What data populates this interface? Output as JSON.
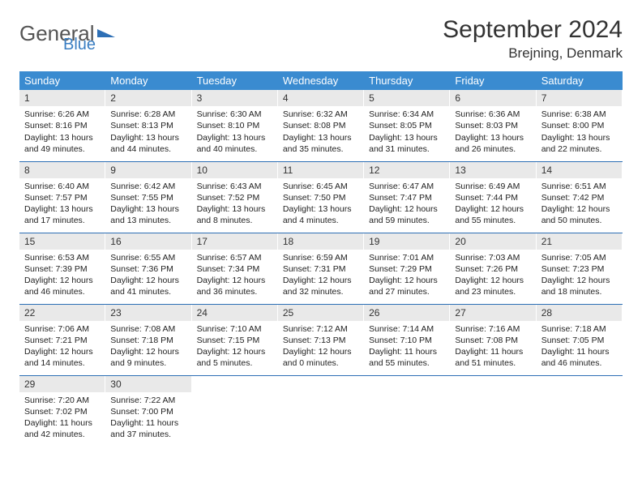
{
  "logo": {
    "word1": "General",
    "word2": "Blue"
  },
  "title": "September 2024",
  "location": "Brejning, Denmark",
  "colors": {
    "header_bg": "#3a8bd0",
    "header_text": "#ffffff",
    "daynum_bg": "#e9e9e9",
    "row_border": "#2d6fb5",
    "logo_gray": "#555555",
    "logo_blue": "#3a7ec2",
    "text": "#222222",
    "background": "#ffffff"
  },
  "type": "table",
  "columns": [
    "Sunday",
    "Monday",
    "Tuesday",
    "Wednesday",
    "Thursday",
    "Friday",
    "Saturday"
  ],
  "weeks": [
    [
      {
        "n": "1",
        "sr": "6:26 AM",
        "ss": "8:16 PM",
        "dl": "13 hours and 49 minutes."
      },
      {
        "n": "2",
        "sr": "6:28 AM",
        "ss": "8:13 PM",
        "dl": "13 hours and 44 minutes."
      },
      {
        "n": "3",
        "sr": "6:30 AM",
        "ss": "8:10 PM",
        "dl": "13 hours and 40 minutes."
      },
      {
        "n": "4",
        "sr": "6:32 AM",
        "ss": "8:08 PM",
        "dl": "13 hours and 35 minutes."
      },
      {
        "n": "5",
        "sr": "6:34 AM",
        "ss": "8:05 PM",
        "dl": "13 hours and 31 minutes."
      },
      {
        "n": "6",
        "sr": "6:36 AM",
        "ss": "8:03 PM",
        "dl": "13 hours and 26 minutes."
      },
      {
        "n": "7",
        "sr": "6:38 AM",
        "ss": "8:00 PM",
        "dl": "13 hours and 22 minutes."
      }
    ],
    [
      {
        "n": "8",
        "sr": "6:40 AM",
        "ss": "7:57 PM",
        "dl": "13 hours and 17 minutes."
      },
      {
        "n": "9",
        "sr": "6:42 AM",
        "ss": "7:55 PM",
        "dl": "13 hours and 13 minutes."
      },
      {
        "n": "10",
        "sr": "6:43 AM",
        "ss": "7:52 PM",
        "dl": "13 hours and 8 minutes."
      },
      {
        "n": "11",
        "sr": "6:45 AM",
        "ss": "7:50 PM",
        "dl": "13 hours and 4 minutes."
      },
      {
        "n": "12",
        "sr": "6:47 AM",
        "ss": "7:47 PM",
        "dl": "12 hours and 59 minutes."
      },
      {
        "n": "13",
        "sr": "6:49 AM",
        "ss": "7:44 PM",
        "dl": "12 hours and 55 minutes."
      },
      {
        "n": "14",
        "sr": "6:51 AM",
        "ss": "7:42 PM",
        "dl": "12 hours and 50 minutes."
      }
    ],
    [
      {
        "n": "15",
        "sr": "6:53 AM",
        "ss": "7:39 PM",
        "dl": "12 hours and 46 minutes."
      },
      {
        "n": "16",
        "sr": "6:55 AM",
        "ss": "7:36 PM",
        "dl": "12 hours and 41 minutes."
      },
      {
        "n": "17",
        "sr": "6:57 AM",
        "ss": "7:34 PM",
        "dl": "12 hours and 36 minutes."
      },
      {
        "n": "18",
        "sr": "6:59 AM",
        "ss": "7:31 PM",
        "dl": "12 hours and 32 minutes."
      },
      {
        "n": "19",
        "sr": "7:01 AM",
        "ss": "7:29 PM",
        "dl": "12 hours and 27 minutes."
      },
      {
        "n": "20",
        "sr": "7:03 AM",
        "ss": "7:26 PM",
        "dl": "12 hours and 23 minutes."
      },
      {
        "n": "21",
        "sr": "7:05 AM",
        "ss": "7:23 PM",
        "dl": "12 hours and 18 minutes."
      }
    ],
    [
      {
        "n": "22",
        "sr": "7:06 AM",
        "ss": "7:21 PM",
        "dl": "12 hours and 14 minutes."
      },
      {
        "n": "23",
        "sr": "7:08 AM",
        "ss": "7:18 PM",
        "dl": "12 hours and 9 minutes."
      },
      {
        "n": "24",
        "sr": "7:10 AM",
        "ss": "7:15 PM",
        "dl": "12 hours and 5 minutes."
      },
      {
        "n": "25",
        "sr": "7:12 AM",
        "ss": "7:13 PM",
        "dl": "12 hours and 0 minutes."
      },
      {
        "n": "26",
        "sr": "7:14 AM",
        "ss": "7:10 PM",
        "dl": "11 hours and 55 minutes."
      },
      {
        "n": "27",
        "sr": "7:16 AM",
        "ss": "7:08 PM",
        "dl": "11 hours and 51 minutes."
      },
      {
        "n": "28",
        "sr": "7:18 AM",
        "ss": "7:05 PM",
        "dl": "11 hours and 46 minutes."
      }
    ],
    [
      {
        "n": "29",
        "sr": "7:20 AM",
        "ss": "7:02 PM",
        "dl": "11 hours and 42 minutes."
      },
      {
        "n": "30",
        "sr": "7:22 AM",
        "ss": "7:00 PM",
        "dl": "11 hours and 37 minutes."
      },
      null,
      null,
      null,
      null,
      null
    ]
  ],
  "labels": {
    "sunrise": "Sunrise:",
    "sunset": "Sunset:",
    "daylight": "Daylight:"
  }
}
